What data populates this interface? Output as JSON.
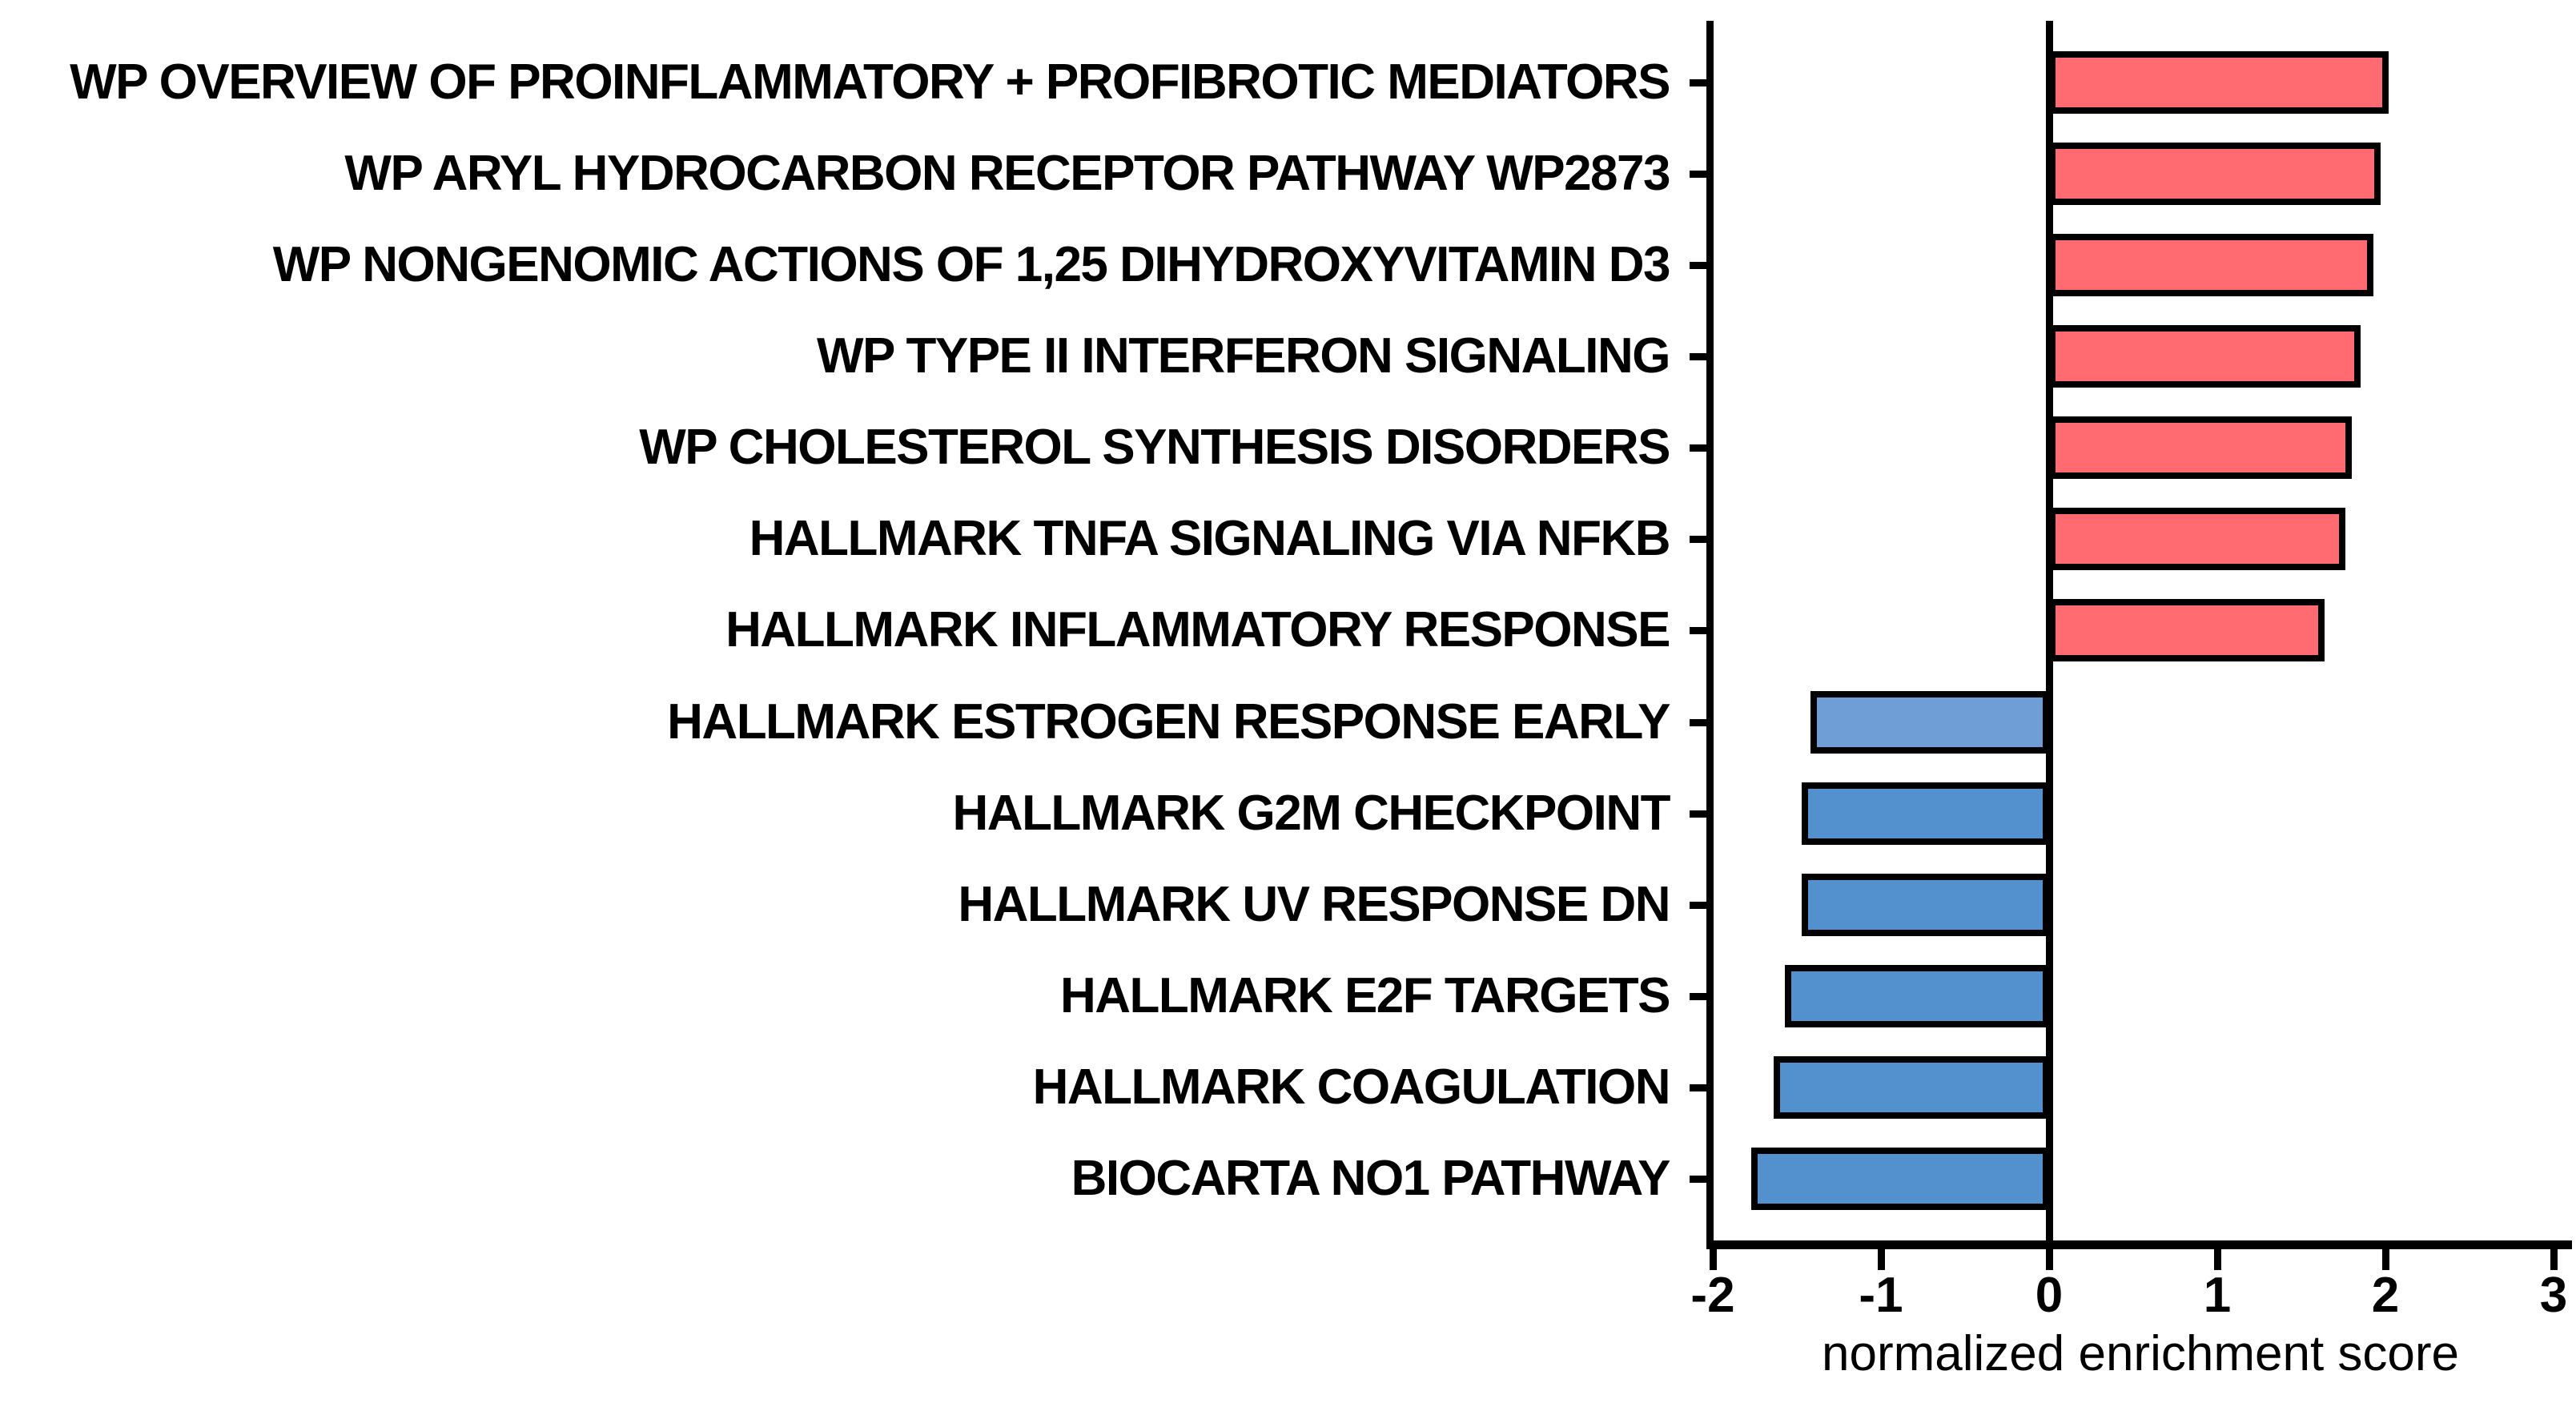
{
  "chart_data": {
    "type": "bar",
    "orientation": "horizontal",
    "title": "",
    "xlabel": "normalized enrichment score",
    "ylabel": "",
    "xlim": [
      -2,
      3
    ],
    "xticks": [
      -2,
      -1,
      0,
      1,
      2,
      3
    ],
    "xtick_labels": [
      "-2",
      "-1",
      "0",
      "1",
      "2",
      "3"
    ],
    "grid": false,
    "legend": "none",
    "categories": [
      "WP OVERVIEW OF PROINFLAMMATORY + PROFIBROTIC MEDIATORS",
      "WP ARYL HYDROCARBON RECEPTOR PATHWAY WP2873",
      "WP NONGENOMIC ACTIONS OF 1,25 DIHYDROXYVITAMIN D3",
      "WP TYPE II INTERFERON SIGNALING",
      "WP CHOLESTEROL SYNTHESIS DISORDERS",
      "HALLMARK TNFA SIGNALING VIA NFKB",
      "HALLMARK INFLAMMATORY RESPONSE",
      "HALLMARK ESTROGEN RESPONSE EARLY",
      "HALLMARK G2M CHECKPOINT",
      "HALLMARK UV RESPONSE DN",
      "HALLMARK E2F TARGETS",
      "HALLMARK COAGULATION",
      "BIOCARTA NO1 PATHWAY"
    ],
    "values": [
      2.02,
      1.97,
      1.93,
      1.85,
      1.8,
      1.76,
      1.64,
      -1.42,
      -1.47,
      -1.47,
      -1.57,
      -1.64,
      -1.77
    ],
    "bar_colors": [
      "#ff6b71",
      "#ff6b71",
      "#ff6b71",
      "#ff6b71",
      "#ff6b71",
      "#ff6b71",
      "#ff6b71",
      "#6f9ed6",
      "#5290ce",
      "#5290ce",
      "#5290ce",
      "#5290ce",
      "#5290ce"
    ],
    "positive_color": "#ff6b71",
    "negative_color": "#5290ce",
    "negative_color_light": "#6f9ed6",
    "bar_border_color": "#000000",
    "axis_color": "#000000"
  }
}
